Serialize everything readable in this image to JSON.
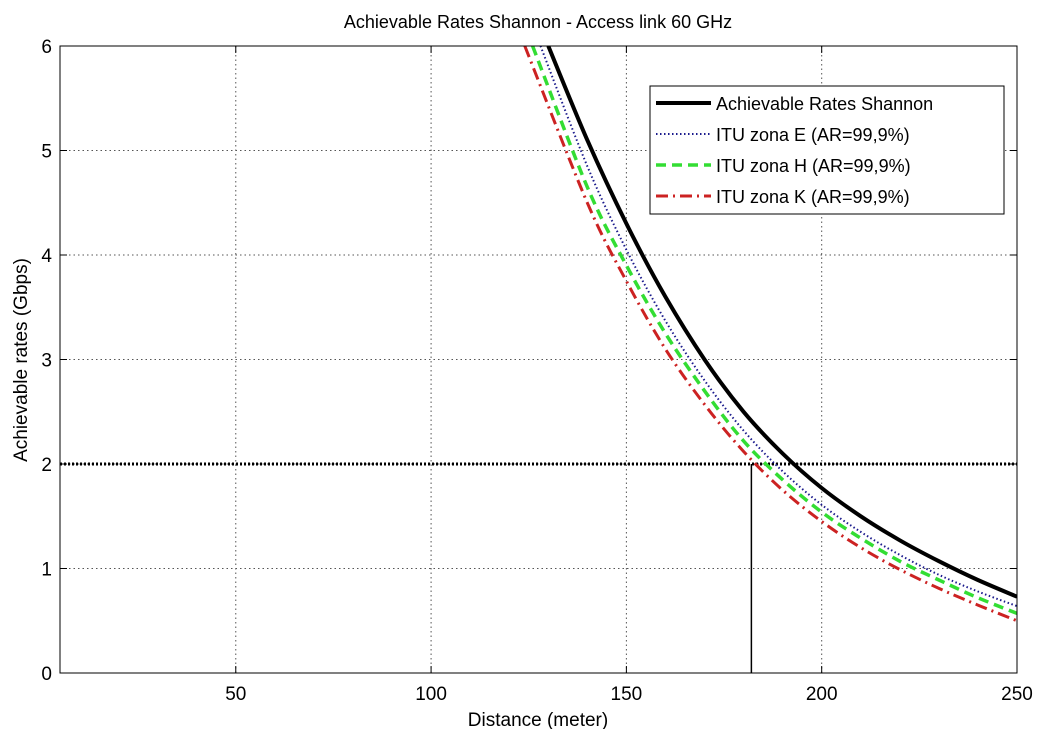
{
  "chart_data": {
    "type": "line",
    "title": "Achievable Rates Shannon - Access link 60 GHz",
    "xlabel": "Distance (meter)",
    "ylabel": "Achievable rates (Gbps)",
    "xlim": [
      5,
      250
    ],
    "ylim": [
      0,
      6
    ],
    "xticks": [
      50,
      100,
      150,
      200,
      250
    ],
    "yticks": [
      0,
      1,
      2,
      3,
      4,
      5,
      6
    ],
    "grid": true,
    "legend_position": "top-right",
    "series": [
      {
        "name": "Achievable Rates Shannon",
        "color": "#000000",
        "style": "solid",
        "x": [
          130,
          140,
          150,
          160,
          170,
          180,
          190,
          200,
          210,
          220,
          230,
          240,
          250
        ],
        "y": [
          6.0,
          5.1,
          4.3,
          3.6,
          3.0,
          2.5,
          2.1,
          1.77,
          1.5,
          1.27,
          1.07,
          0.89,
          0.73
        ]
      },
      {
        "name": "ITU zona E (AR=99,9%)",
        "color": "#1a1a8c",
        "style": "dotted",
        "x": [
          128,
          140,
          150,
          160,
          170,
          180,
          190,
          200,
          210,
          220,
          230,
          240,
          250
        ],
        "y": [
          6.0,
          4.85,
          4.05,
          3.37,
          2.8,
          2.32,
          1.93,
          1.61,
          1.35,
          1.13,
          0.94,
          0.78,
          0.64
        ]
      },
      {
        "name": "ITU zona H (AR=99,9%)",
        "color": "#33dd33",
        "style": "dashed",
        "x": [
          126,
          140,
          150,
          160,
          170,
          180,
          190,
          200,
          210,
          220,
          230,
          240,
          250
        ],
        "y": [
          6.0,
          4.65,
          3.9,
          3.25,
          2.7,
          2.22,
          1.85,
          1.54,
          1.29,
          1.07,
          0.89,
          0.72,
          0.57
        ]
      },
      {
        "name": "ITU zona K (AR=99,9%)",
        "color": "#cc2222",
        "style": "dashdot",
        "x": [
          124,
          140,
          150,
          160,
          170,
          180,
          190,
          200,
          210,
          220,
          230,
          240,
          250
        ],
        "y": [
          6.0,
          4.5,
          3.75,
          3.1,
          2.57,
          2.12,
          1.75,
          1.45,
          1.2,
          0.99,
          0.81,
          0.65,
          0.5
        ]
      }
    ],
    "reference_lines": [
      {
        "orientation": "horizontal",
        "value": 2,
        "style": "dotted",
        "color": "#000000"
      },
      {
        "orientation": "vertical",
        "value": 182,
        "from": 0,
        "to": 2,
        "style": "solid",
        "color": "#000000"
      }
    ]
  }
}
